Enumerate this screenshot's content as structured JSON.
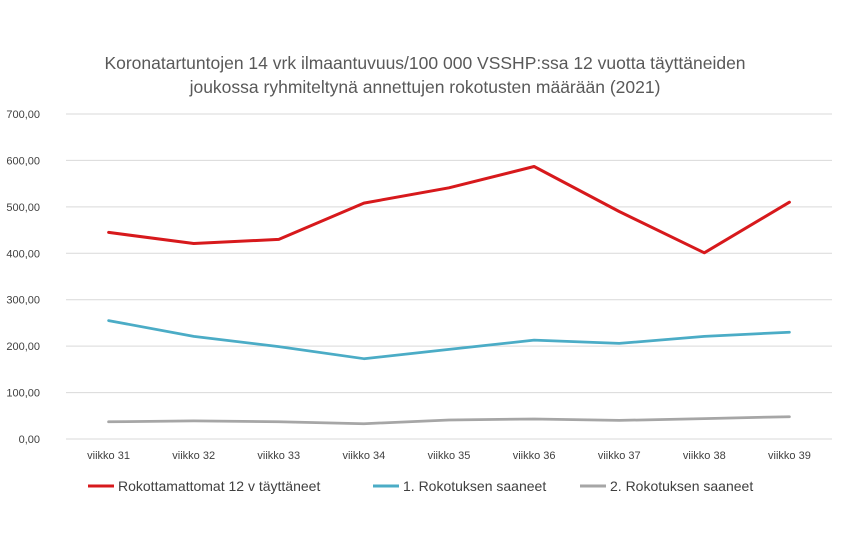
{
  "chart_data": {
    "type": "line",
    "title_lines": [
      "Koronatartuntojen 14 vrk ilmaantuvuus/100 000 VSSHP:ssa 12 vuotta täyttäneiden",
      "joukossa ryhmiteltynä annettujen rokotusten määrään (2021)"
    ],
    "categories": [
      "viikko 31",
      "viikko 32",
      "viikko 33",
      "viikko 34",
      "viikko 35",
      "viikko 36",
      "viikko 37",
      "viikko 38",
      "viikko 39"
    ],
    "yticks": [
      "0,00",
      "100,00",
      "200,00",
      "300,00",
      "400,00",
      "500,00",
      "600,00",
      "700,00"
    ],
    "ylim": [
      0,
      700
    ],
    "grid": true,
    "legend_position": "bottom",
    "series": [
      {
        "name": "Rokottamattomat 12 v täyttäneet",
        "color": "#d7191c",
        "values": [
          445,
          421,
          430,
          508,
          541,
          587,
          490,
          401,
          510
        ]
      },
      {
        "name": "1. Rokotuksen saaneet",
        "color": "#4bacc6",
        "values": [
          255,
          221,
          199,
          173,
          193,
          213,
          206,
          221,
          230
        ]
      },
      {
        "name": "2. Rokotuksen saaneet",
        "color": "#a6a6a6",
        "values": [
          37,
          39,
          37,
          33,
          41,
          43,
          40,
          44,
          48
        ]
      }
    ]
  }
}
